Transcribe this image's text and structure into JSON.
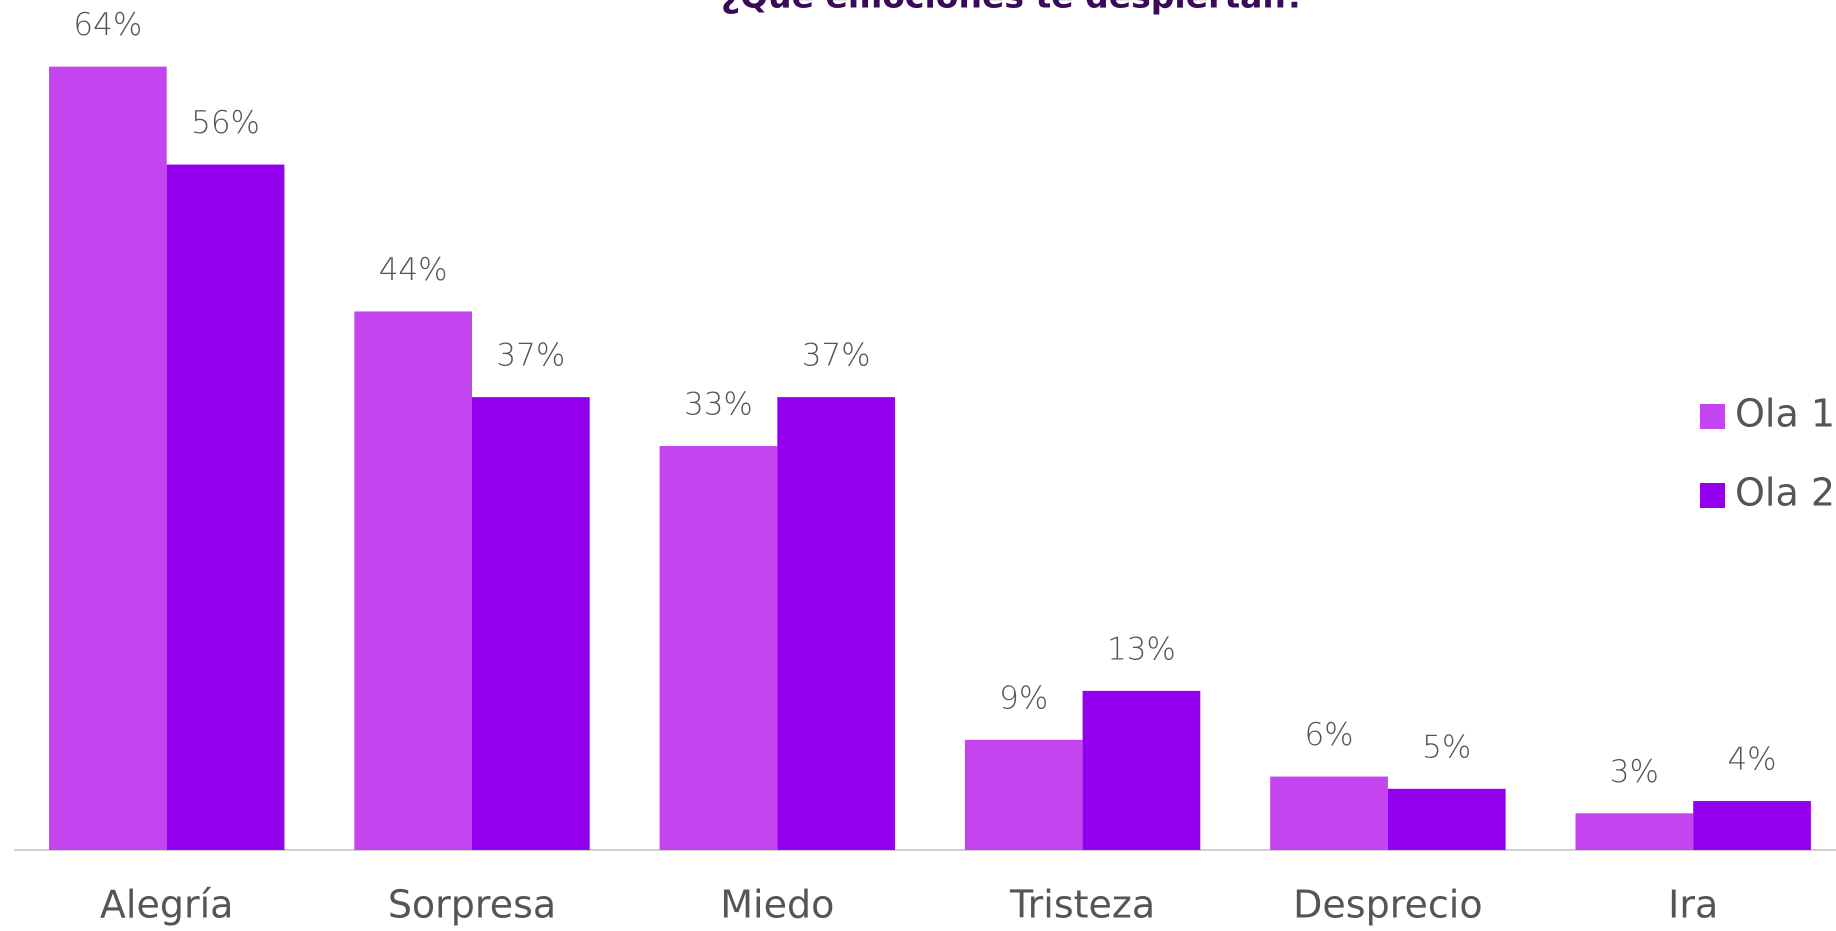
{
  "chart_data": {
    "type": "bar",
    "title": "¿Qué emociones te despiertan?",
    "categories": [
      "Alegría",
      "Sorpresa",
      "Miedo",
      "Tristeza",
      "Desprecio",
      "Ira"
    ],
    "series": [
      {
        "name": "Ola 1",
        "color": "#c444f0",
        "values": [
          64,
          44,
          33,
          9,
          6,
          3
        ],
        "value_labels": [
          "64%",
          "44%",
          "33%",
          "9%",
          "6%",
          "3%"
        ]
      },
      {
        "name": "Ola 2",
        "color": "#9300ed",
        "values": [
          56,
          37,
          37,
          13,
          5,
          4
        ],
        "value_labels": [
          "56%",
          "37%",
          "37%",
          "13%",
          "5%",
          "4%"
        ]
      }
    ],
    "legend": "right"
  }
}
